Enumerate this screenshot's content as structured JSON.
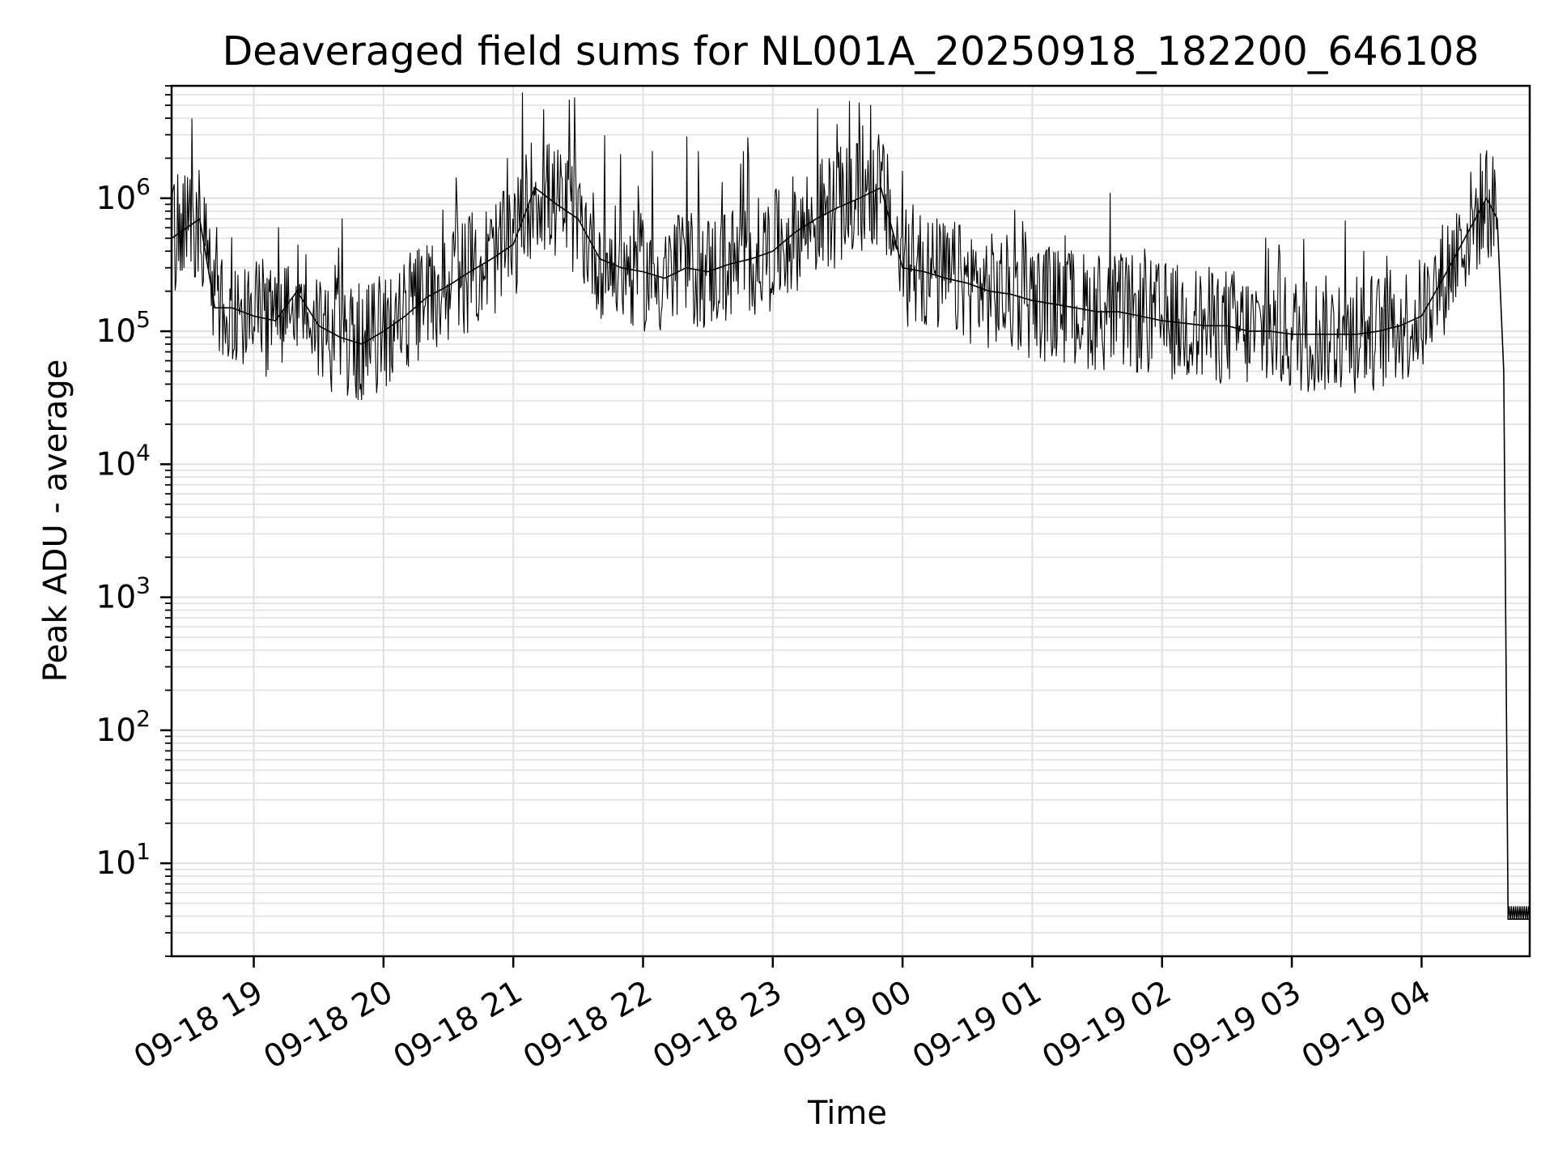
{
  "chart_data": {
    "type": "line",
    "title": "Deaveraged field sums for NL001A_20250918_182200_646108",
    "xlabel": "Time",
    "ylabel": "Peak ADU - average",
    "yscale": "log",
    "ylim": [
      2,
      7000000
    ],
    "xlim": [
      "2025-09-18 18:22",
      "2025-09-19 04:50"
    ],
    "grid": "both, major and minor",
    "line_color": "#000000",
    "x_ticks": [
      {
        "value": "2025-09-18 19:00",
        "label": "09-18 19"
      },
      {
        "value": "2025-09-18 20:00",
        "label": "09-18 20"
      },
      {
        "value": "2025-09-18 21:00",
        "label": "09-18 21"
      },
      {
        "value": "2025-09-18 22:00",
        "label": "09-18 22"
      },
      {
        "value": "2025-09-18 23:00",
        "label": "09-18 23"
      },
      {
        "value": "2025-09-19 00:00",
        "label": "09-19 00"
      },
      {
        "value": "2025-09-19 01:00",
        "label": "09-19 01"
      },
      {
        "value": "2025-09-19 02:00",
        "label": "09-19 02"
      },
      {
        "value": "2025-09-19 03:00",
        "label": "09-19 03"
      },
      {
        "value": "2025-09-19 04:00",
        "label": "09-19 04"
      }
    ],
    "y_ticks": [
      {
        "value": 10,
        "base": "10",
        "exp": "1"
      },
      {
        "value": 100,
        "base": "10",
        "exp": "2"
      },
      {
        "value": 1000,
        "base": "10",
        "exp": "3"
      },
      {
        "value": 10000,
        "base": "10",
        "exp": "4"
      },
      {
        "value": 100000,
        "base": "10",
        "exp": "5"
      },
      {
        "value": 1000000,
        "base": "10",
        "exp": "6"
      }
    ],
    "series": [
      {
        "x": [
          "2025-09-18 18:22",
          "2025-09-18 18:35",
          "2025-09-18 18:42",
          "2025-09-18 18:50",
          "2025-09-18 19:00",
          "2025-09-18 19:10",
          "2025-09-18 19:20",
          "2025-09-18 19:30",
          "2025-09-18 19:40",
          "2025-09-18 19:50",
          "2025-09-18 20:00",
          "2025-09-18 20:10",
          "2025-09-18 20:20",
          "2025-09-18 20:30",
          "2025-09-18 20:40",
          "2025-09-18 20:50",
          "2025-09-18 21:00",
          "2025-09-18 21:10",
          "2025-09-18 21:20",
          "2025-09-18 21:30",
          "2025-09-18 21:40",
          "2025-09-18 21:50",
          "2025-09-18 22:00",
          "2025-09-18 22:10",
          "2025-09-18 22:20",
          "2025-09-18 22:30",
          "2025-09-18 22:40",
          "2025-09-18 22:50",
          "2025-09-18 23:00",
          "2025-09-18 23:10",
          "2025-09-18 23:20",
          "2025-09-18 23:30",
          "2025-09-18 23:40",
          "2025-09-18 23:50",
          "2025-09-19 00:00",
          "2025-09-19 00:10",
          "2025-09-19 00:20",
          "2025-09-19 00:30",
          "2025-09-19 00:40",
          "2025-09-19 00:50",
          "2025-09-19 01:00",
          "2025-09-19 01:10",
          "2025-09-19 01:20",
          "2025-09-19 01:30",
          "2025-09-19 01:40",
          "2025-09-19 01:50",
          "2025-09-19 02:00",
          "2025-09-19 02:10",
          "2025-09-19 02:20",
          "2025-09-19 02:30",
          "2025-09-19 02:40",
          "2025-09-19 02:50",
          "2025-09-19 03:00",
          "2025-09-19 03:10",
          "2025-09-19 03:20",
          "2025-09-19 03:30",
          "2025-09-19 03:40",
          "2025-09-19 03:50",
          "2025-09-19 04:00",
          "2025-09-19 04:10",
          "2025-09-19 04:20",
          "2025-09-19 04:30",
          "2025-09-19 04:35",
          "2025-09-19 04:38",
          "2025-09-19 04:40",
          "2025-09-19 04:42",
          "2025-09-19 04:50"
        ],
        "y": [
          500000,
          700000,
          150000,
          150000,
          130000,
          120000,
          200000,
          110000,
          90000,
          80000,
          100000,
          130000,
          180000,
          220000,
          280000,
          350000,
          450000,
          1200000,
          900000,
          700000,
          350000,
          300000,
          280000,
          250000,
          300000,
          280000,
          320000,
          350000,
          400000,
          550000,
          700000,
          850000,
          1000000,
          1200000,
          300000,
          280000,
          250000,
          230000,
          200000,
          190000,
          170000,
          160000,
          150000,
          140000,
          140000,
          130000,
          120000,
          115000,
          110000,
          110000,
          100000,
          100000,
          95000,
          95000,
          95000,
          95000,
          100000,
          110000,
          130000,
          250000,
          500000,
          1000000,
          700000,
          50000,
          3.8,
          3.8,
          3.8
        ]
      }
    ]
  }
}
